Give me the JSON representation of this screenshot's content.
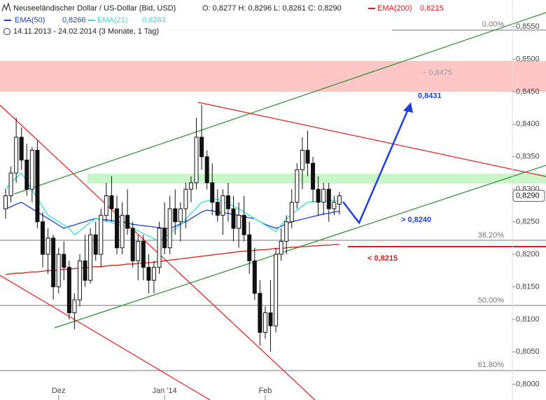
{
  "chart_data": {
    "type": "candlestick",
    "title": "Neuseeländischer Dollar / US-Dollar (Bid, USD)",
    "ohlc_text": "O: 0,8277  H: 0,8296  L: 0,8261  C: 0,8290",
    "period": "14.11.2013 - 24.02.2014 (3 Monate, 1 Tag)",
    "categories": [
      null,
      null,
      null,
      null,
      null,
      null,
      null,
      null,
      null,
      null,
      "Dez",
      null,
      null,
      null,
      null,
      null,
      null,
      null,
      null,
      null,
      null,
      null,
      null,
      null,
      null,
      null,
      null,
      null,
      null,
      null,
      "Jan '14",
      null,
      null,
      null,
      null,
      null,
      null,
      null,
      null,
      null,
      null,
      null,
      null,
      null,
      null,
      null,
      null,
      null,
      null,
      "Feb",
      null,
      null,
      null,
      null,
      null,
      null,
      null,
      null,
      null,
      null,
      null,
      null,
      null,
      null
    ],
    "open": [
      0.827,
      0.829,
      0.8325,
      0.838,
      0.8345,
      0.83,
      0.836,
      0.825,
      0.82,
      0.8225,
      0.815,
      0.82,
      0.818,
      0.811,
      0.813,
      0.819,
      0.816,
      0.823,
      0.82,
      0.826,
      0.829,
      0.827,
      0.821,
      0.826,
      0.824,
      0.819,
      0.822,
      0.818,
      0.816,
      0.818,
      0.824,
      0.821,
      0.827,
      0.825,
      0.827,
      0.83,
      0.831,
      0.838,
      0.835,
      0.831,
      0.828,
      0.826,
      0.829,
      0.827,
      0.824,
      0.826,
      0.823,
      0.819,
      0.814,
      0.808,
      0.811,
      0.809,
      0.82,
      0.822,
      0.825,
      0.828,
      0.833,
      0.836,
      0.834,
      0.83,
      0.828,
      0.83,
      0.827,
      0.8277
    ],
    "high": [
      0.83,
      0.8335,
      0.841,
      0.8395,
      0.837,
      0.8365,
      0.8375,
      0.8265,
      0.824,
      0.823,
      0.821,
      0.822,
      0.819,
      0.814,
      0.82,
      0.823,
      0.824,
      0.825,
      0.827,
      0.831,
      0.832,
      0.829,
      0.828,
      0.83,
      0.825,
      0.823,
      0.823,
      0.82,
      0.819,
      0.825,
      0.828,
      0.829,
      0.83,
      0.828,
      0.831,
      0.832,
      0.841,
      0.843,
      0.836,
      0.834,
      0.83,
      0.83,
      0.831,
      0.829,
      0.828,
      0.829,
      0.825,
      0.821,
      0.816,
      0.812,
      0.816,
      0.821,
      0.824,
      0.826,
      0.83,
      0.834,
      0.838,
      0.839,
      0.835,
      0.832,
      0.831,
      0.831,
      0.829,
      0.8296
    ],
    "low": [
      0.8255,
      0.828,
      0.831,
      0.833,
      0.829,
      0.828,
      0.824,
      0.818,
      0.817,
      0.813,
      0.814,
      0.816,
      0.81,
      0.8085,
      0.812,
      0.815,
      0.8155,
      0.819,
      0.818,
      0.825,
      0.825,
      0.82,
      0.82,
      0.823,
      0.818,
      0.816,
      0.816,
      0.814,
      0.814,
      0.817,
      0.82,
      0.82,
      0.823,
      0.822,
      0.824,
      0.828,
      0.83,
      0.833,
      0.83,
      0.826,
      0.825,
      0.823,
      0.825,
      0.822,
      0.821,
      0.822,
      0.817,
      0.813,
      0.806,
      0.807,
      0.805,
      0.808,
      0.819,
      0.82,
      0.824,
      0.827,
      0.83,
      0.832,
      0.828,
      0.826,
      0.826,
      0.825,
      0.826,
      0.8261
    ],
    "close": [
      0.829,
      0.8325,
      0.838,
      0.8345,
      0.83,
      0.836,
      0.825,
      0.82,
      0.8225,
      0.815,
      0.82,
      0.818,
      0.811,
      0.813,
      0.819,
      0.816,
      0.823,
      0.82,
      0.826,
      0.829,
      0.827,
      0.821,
      0.826,
      0.824,
      0.819,
      0.822,
      0.818,
      0.816,
      0.818,
      0.824,
      0.821,
      0.827,
      0.825,
      0.827,
      0.83,
      0.831,
      0.838,
      0.835,
      0.831,
      0.828,
      0.826,
      0.829,
      0.827,
      0.824,
      0.826,
      0.823,
      0.819,
      0.814,
      0.808,
      0.811,
      0.809,
      0.82,
      0.822,
      0.825,
      0.828,
      0.833,
      0.836,
      0.834,
      0.83,
      0.828,
      0.83,
      0.827,
      0.828,
      0.829
    ],
    "series": [
      {
        "name": "EMA(50)",
        "color": "#1f3fd6",
        "last_label": "0,8266",
        "values": [
          0.827,
          0.8273,
          0.8277,
          0.828,
          0.8275,
          0.827,
          0.8265,
          0.826,
          0.8255,
          0.825,
          0.8245,
          0.824,
          0.8243,
          0.8245,
          0.8248,
          0.825,
          0.8253,
          0.8255,
          0.8254,
          0.8253,
          0.8252,
          0.825,
          0.8249,
          0.8248,
          0.8246,
          0.8245,
          0.8244,
          0.8243,
          0.8242,
          0.8241,
          0.824,
          0.824,
          0.8243,
          0.8247,
          0.825,
          0.8255,
          0.826,
          0.8265,
          0.8268,
          0.8267,
          0.8265,
          0.8264,
          0.8263,
          0.8261,
          0.826,
          0.8258,
          0.8256,
          0.8255,
          0.825,
          0.8246,
          0.8243,
          0.824,
          0.8243,
          0.8247,
          0.825,
          0.8252,
          0.8254,
          0.8256,
          0.8258,
          0.826,
          0.8262,
          0.8263,
          0.8265,
          0.8266
        ]
      },
      {
        "name": "EMA(21)",
        "color": "#3ddbd0",
        "last_label": "0,8283",
        "values": [
          0.83,
          0.831,
          0.8318,
          0.8325,
          0.8312,
          0.8299,
          0.8286,
          0.8273,
          0.826,
          0.8255,
          0.825,
          0.8245,
          0.824,
          0.823,
          0.8236,
          0.8243,
          0.8249,
          0.8255,
          0.8253,
          0.8251,
          0.8249,
          0.8246,
          0.8244,
          0.8242,
          0.824,
          0.8236,
          0.8232,
          0.8228,
          0.8224,
          0.822,
          0.8226,
          0.8232,
          0.8239,
          0.8245,
          0.8254,
          0.8263,
          0.8271,
          0.828,
          0.8282,
          0.8284,
          0.8285,
          0.8281,
          0.8278,
          0.8274,
          0.827,
          0.8265,
          0.826,
          0.8255,
          0.825,
          0.8245,
          0.824,
          0.8235,
          0.8245,
          0.8255,
          0.8261,
          0.8268,
          0.8274,
          0.828,
          0.8281,
          0.8281,
          0.8282,
          0.8282,
          0.8283,
          0.8283
        ]
      },
      {
        "name": "EMA(200)",
        "color": "#d81c1c",
        "last_label": "0,8215",
        "values": [
          0.8169,
          0.817,
          0.8171,
          0.8171,
          0.8172,
          0.8173,
          0.8173,
          0.8174,
          0.8175,
          0.8175,
          0.8176,
          0.8177,
          0.8177,
          0.8178,
          0.8179,
          0.8179,
          0.818,
          0.8181,
          0.8181,
          0.8182,
          0.8183,
          0.8183,
          0.8184,
          0.8185,
          0.8185,
          0.8186,
          0.8187,
          0.8187,
          0.8188,
          0.8189,
          0.819,
          0.8191,
          0.8192,
          0.8193,
          0.8194,
          0.8195,
          0.8196,
          0.8197,
          0.8198,
          0.8199,
          0.82,
          0.8201,
          0.8202,
          0.8203,
          0.8204,
          0.8205,
          0.8205,
          0.8206,
          0.8207,
          0.8207,
          0.8208,
          0.8209,
          0.8209,
          0.821,
          0.8211,
          0.8211,
          0.8212,
          0.8212,
          0.8213,
          0.8213,
          0.8214,
          0.8214,
          0.8215,
          0.8215
        ]
      }
    ],
    "ylim": [
      0.7976,
      0.8591
    ],
    "yticks": [
      {
        "value": 0.8,
        "label": "0,8000"
      },
      {
        "value": 0.805,
        "label": "0,8050"
      },
      {
        "value": 0.81,
        "label": "0,8100"
      },
      {
        "value": 0.815,
        "label": "0,8150"
      },
      {
        "value": 0.82,
        "label": "0,8200"
      },
      {
        "value": 0.825,
        "label": "0,8250"
      },
      {
        "value": 0.83,
        "label": "0,8300"
      },
      {
        "value": 0.835,
        "label": "0,8350"
      },
      {
        "value": 0.84,
        "label": "0,8400"
      },
      {
        "value": 0.845,
        "label": "0,8450"
      },
      {
        "value": 0.85,
        "label": "0,8500"
      },
      {
        "value": 0.855,
        "label": "0,8550"
      }
    ],
    "last_price": {
      "value": 0.829,
      "label": "0,8290"
    },
    "fib_labels": [
      "0.00%",
      "38.20%",
      "50.00%",
      "61.80%"
    ],
    "annotations": {
      "target": "0,8431",
      "zone": "~ 0,8475",
      "support": "> 0,8240",
      "stop": "< 0,8215"
    }
  }
}
